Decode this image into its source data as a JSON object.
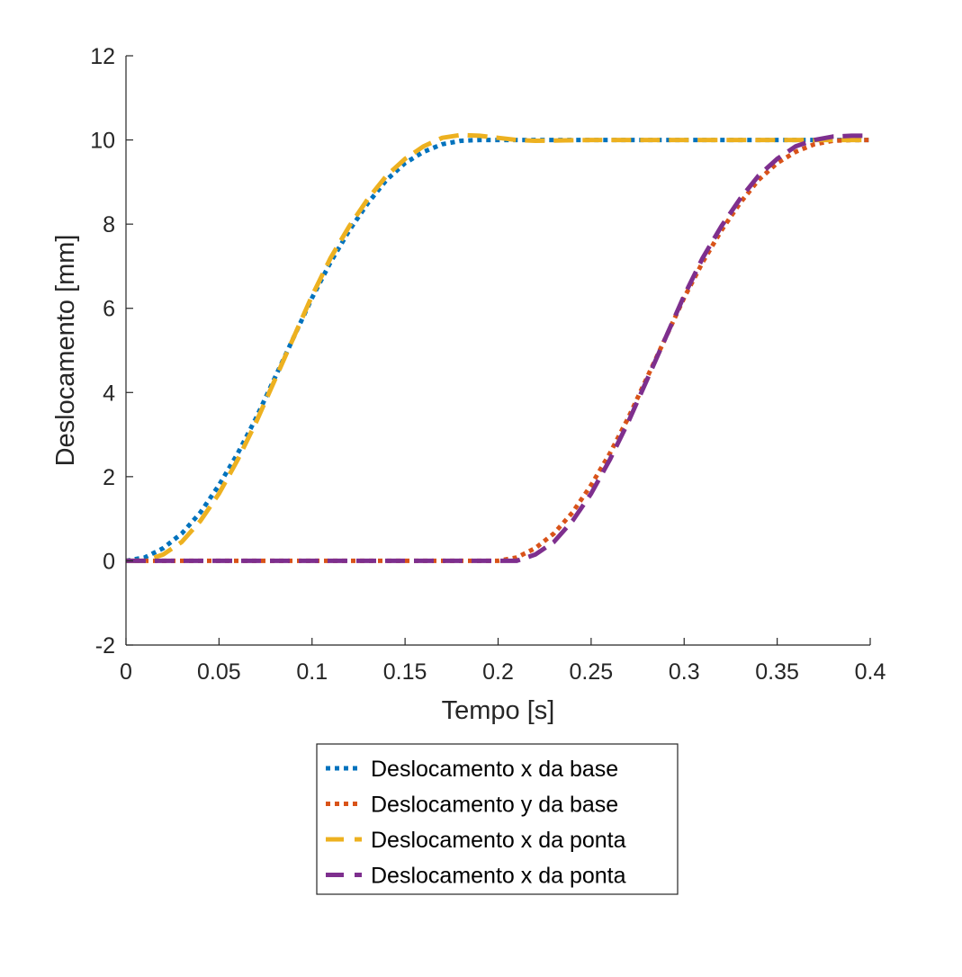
{
  "chart_data": {
    "type": "line",
    "title": "",
    "xlabel": "Tempo [s]",
    "ylabel": "Deslocamento [mm]",
    "xlim": [
      0,
      0.4
    ],
    "ylim": [
      -2,
      12
    ],
    "xticks": [
      0,
      0.05,
      0.1,
      0.15,
      0.2,
      0.25,
      0.3,
      0.35,
      0.4
    ],
    "xtick_labels": [
      "0",
      "0.05",
      "0.1",
      "0.15",
      "0.2",
      "0.25",
      "0.3",
      "0.35",
      "0.4"
    ],
    "yticks": [
      -2,
      0,
      2,
      4,
      6,
      8,
      10,
      12
    ],
    "ytick_labels": [
      "-2",
      "0",
      "2",
      "4",
      "6",
      "8",
      "10",
      "12"
    ],
    "grid": false,
    "legend_position": "below-plot",
    "series": [
      {
        "name": "Deslocamento x da base",
        "color": "#0072BD",
        "style": "dotted",
        "x": [
          0,
          0.01,
          0.02,
          0.03,
          0.04,
          0.05,
          0.06,
          0.07,
          0.08,
          0.09,
          0.1,
          0.11,
          0.12,
          0.13,
          0.14,
          0.15,
          0.16,
          0.17,
          0.18,
          0.19,
          0.2,
          0.25,
          0.3,
          0.35,
          0.4
        ],
        "y": [
          0,
          0.08,
          0.3,
          0.65,
          1.15,
          1.8,
          2.55,
          3.4,
          4.35,
          5.3,
          6.25,
          7.1,
          7.85,
          8.5,
          9.05,
          9.45,
          9.72,
          9.9,
          9.98,
          10.0,
          10.0,
          10.0,
          10.0,
          10.0,
          10.0
        ]
      },
      {
        "name": "Deslocamento y da base",
        "color": "#D95319",
        "style": "dotted",
        "x": [
          0,
          0.05,
          0.1,
          0.15,
          0.2,
          0.21,
          0.22,
          0.23,
          0.24,
          0.25,
          0.26,
          0.27,
          0.28,
          0.29,
          0.3,
          0.31,
          0.32,
          0.33,
          0.34,
          0.35,
          0.36,
          0.37,
          0.38,
          0.39,
          0.4
        ],
        "y": [
          0,
          0,
          0,
          0,
          0,
          0.08,
          0.3,
          0.65,
          1.15,
          1.8,
          2.55,
          3.4,
          4.35,
          5.3,
          6.25,
          7.1,
          7.85,
          8.5,
          9.05,
          9.45,
          9.72,
          9.9,
          9.98,
          10.0,
          10.0
        ]
      },
      {
        "name": "Deslocamento x da ponta",
        "color": "#EDB120",
        "style": "dashed",
        "x": [
          0,
          0.01,
          0.02,
          0.03,
          0.04,
          0.05,
          0.06,
          0.07,
          0.08,
          0.09,
          0.1,
          0.11,
          0.12,
          0.13,
          0.14,
          0.15,
          0.16,
          0.17,
          0.18,
          0.19,
          0.2,
          0.21,
          0.22,
          0.25,
          0.3,
          0.35,
          0.4
        ],
        "y": [
          0,
          0.0,
          0.15,
          0.45,
          0.95,
          1.6,
          2.4,
          3.3,
          4.3,
          5.3,
          6.3,
          7.2,
          7.95,
          8.6,
          9.15,
          9.55,
          9.85,
          10.05,
          10.12,
          10.1,
          10.05,
          10.0,
          9.98,
          10.0,
          10.0,
          10.0,
          10.0
        ]
      },
      {
        "name": "Deslocamento x da ponta",
        "color": "#7E2F8E",
        "style": "dashed",
        "x": [
          0,
          0.05,
          0.1,
          0.15,
          0.2,
          0.21,
          0.22,
          0.23,
          0.24,
          0.25,
          0.26,
          0.27,
          0.28,
          0.29,
          0.3,
          0.31,
          0.32,
          0.33,
          0.34,
          0.35,
          0.36,
          0.37,
          0.38,
          0.39,
          0.4
        ],
        "y": [
          0,
          0,
          0,
          0,
          0,
          0.0,
          0.15,
          0.45,
          0.95,
          1.6,
          2.4,
          3.3,
          4.3,
          5.3,
          6.3,
          7.2,
          7.95,
          8.6,
          9.15,
          9.55,
          9.85,
          10.0,
          10.08,
          10.1,
          10.1
        ]
      }
    ]
  }
}
